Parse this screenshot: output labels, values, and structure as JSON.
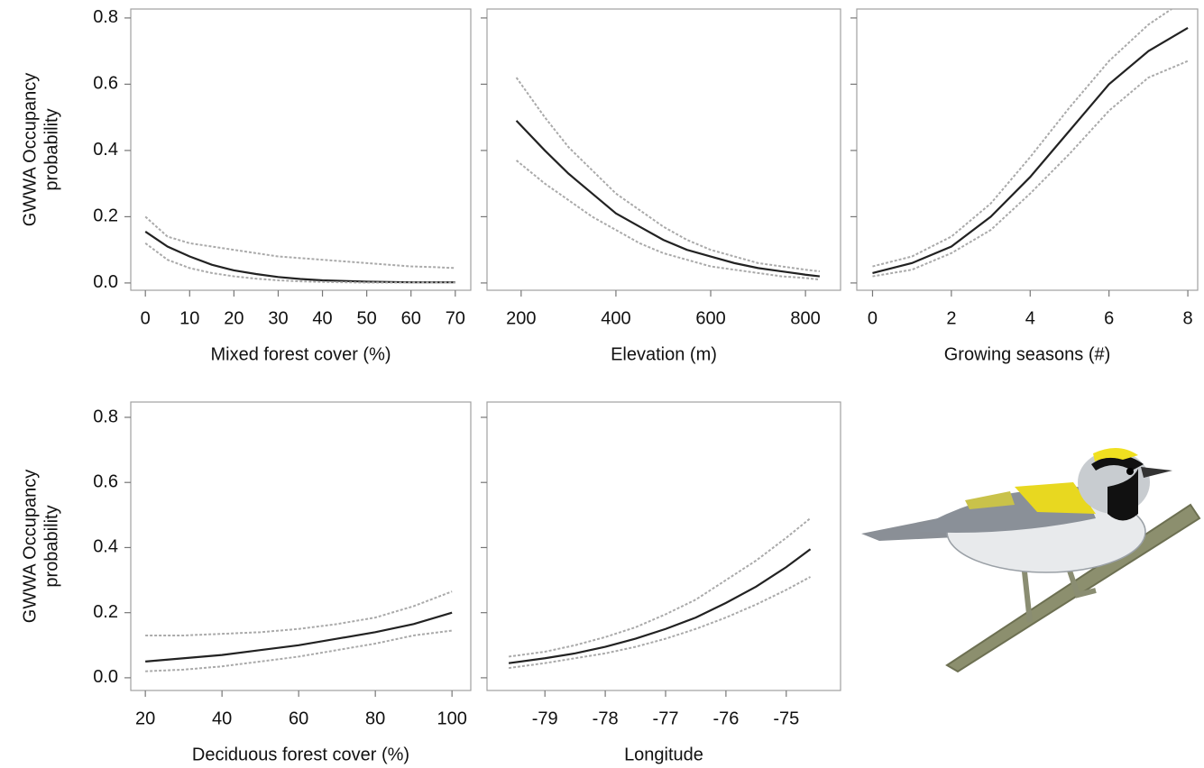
{
  "chart_data": [
    {
      "type": "line",
      "xlabel": "Mixed forest cover (%)",
      "ylabel": [
        "GWWA Occupancy",
        "probability"
      ],
      "show_ytick_labels": true,
      "x": [
        0,
        5,
        10,
        15,
        20,
        25,
        30,
        35,
        40,
        45,
        50,
        55,
        60,
        65,
        70
      ],
      "series": [
        {
          "color": "#aaaaaa",
          "style": "dashed",
          "values": [
            0.2,
            0.14,
            0.12,
            0.11,
            0.1,
            0.09,
            0.08,
            0.075,
            0.07,
            0.065,
            0.06,
            0.055,
            0.05,
            0.048,
            0.045
          ]
        },
        {
          "color": "#222222",
          "style": "solid",
          "values": [
            0.155,
            0.11,
            0.08,
            0.055,
            0.038,
            0.027,
            0.018,
            0.012,
            0.008,
            0.006,
            0.004,
            0.003,
            0.002,
            0.002,
            0.002
          ]
        },
        {
          "color": "#aaaaaa",
          "style": "dashed",
          "values": [
            0.12,
            0.07,
            0.045,
            0.03,
            0.02,
            0.013,
            0.008,
            0.005,
            0.003,
            0.002,
            0.001,
            0.001,
            0.001,
            0.001,
            0.001
          ]
        }
      ],
      "xlim": [
        -3.3,
        73.5
      ],
      "ylim": [
        -0.022,
        0.827
      ],
      "xticks": [
        0,
        10,
        20,
        30,
        40,
        50,
        60,
        70
      ],
      "yticks": [
        {
          "value": 0,
          "label": "0.0"
        },
        0.2,
        0.4,
        0.6,
        0.8
      ]
    },
    {
      "type": "line",
      "xlabel": "Elevation  (m)",
      "show_ytick_labels": false,
      "x": [
        190,
        250,
        300,
        350,
        400,
        450,
        500,
        550,
        600,
        650,
        700,
        750,
        800,
        830
      ],
      "series": [
        {
          "color": "#aaaaaa",
          "style": "dashed",
          "values": [
            0.62,
            0.5,
            0.41,
            0.34,
            0.27,
            0.22,
            0.17,
            0.13,
            0.1,
            0.08,
            0.06,
            0.05,
            0.04,
            0.035
          ]
        },
        {
          "color": "#222222",
          "style": "solid",
          "values": [
            0.49,
            0.4,
            0.33,
            0.27,
            0.21,
            0.17,
            0.13,
            0.1,
            0.08,
            0.06,
            0.045,
            0.035,
            0.025,
            0.02
          ]
        },
        {
          "color": "#aaaaaa",
          "style": "dashed",
          "values": [
            0.37,
            0.3,
            0.25,
            0.2,
            0.16,
            0.12,
            0.09,
            0.07,
            0.05,
            0.04,
            0.03,
            0.02,
            0.015,
            0.01
          ]
        }
      ],
      "xlim": [
        128,
        874
      ],
      "ylim": [
        -0.022,
        0.827
      ],
      "xticks": [
        200,
        400,
        600,
        800
      ],
      "yticks": [
        0,
        0.2,
        0.4,
        0.6,
        0.8
      ]
    },
    {
      "type": "line",
      "xlabel": "Growing  seasons (#)",
      "show_ytick_labels": false,
      "x": [
        0,
        1,
        2,
        3,
        4,
        5,
        6,
        7,
        8
      ],
      "series": [
        {
          "color": "#aaaaaa",
          "style": "dashed",
          "values": [
            0.05,
            0.08,
            0.14,
            0.24,
            0.38,
            0.53,
            0.67,
            0.78,
            0.86
          ]
        },
        {
          "color": "#222222",
          "style": "solid",
          "values": [
            0.03,
            0.06,
            0.11,
            0.2,
            0.32,
            0.46,
            0.6,
            0.7,
            0.77
          ]
        },
        {
          "color": "#aaaaaa",
          "style": "dashed",
          "values": [
            0.02,
            0.04,
            0.09,
            0.16,
            0.27,
            0.39,
            0.52,
            0.62,
            0.67
          ]
        }
      ],
      "xlim": [
        -0.4,
        8.25
      ],
      "ylim": [
        -0.022,
        0.827
      ],
      "xticks": [
        0,
        2,
        4,
        6,
        8
      ],
      "yticks": [
        0,
        0.2,
        0.4,
        0.6,
        0.8
      ]
    },
    {
      "type": "line",
      "xlabel": "Deciduous forest cover (%)",
      "ylabel": [
        "GWWA Occupancy",
        "probability"
      ],
      "show_ytick_labels": true,
      "x": [
        20,
        30,
        40,
        50,
        60,
        70,
        80,
        90,
        100
      ],
      "series": [
        {
          "color": "#aaaaaa",
          "style": "dashed",
          "values": [
            0.13,
            0.13,
            0.135,
            0.14,
            0.15,
            0.165,
            0.185,
            0.22,
            0.265
          ]
        },
        {
          "color": "#222222",
          "style": "solid",
          "values": [
            0.05,
            0.06,
            0.07,
            0.085,
            0.1,
            0.12,
            0.14,
            0.165,
            0.2
          ]
        },
        {
          "color": "#aaaaaa",
          "style": "dashed",
          "values": [
            0.02,
            0.025,
            0.035,
            0.05,
            0.065,
            0.085,
            0.105,
            0.13,
            0.145
          ]
        }
      ],
      "xlim": [
        16.2,
        104.9
      ],
      "ylim": [
        -0.039,
        0.847
      ],
      "xticks": [
        20,
        40,
        60,
        80,
        100
      ],
      "yticks": [
        {
          "value": 0,
          "label": "0.0"
        },
        0.2,
        0.4,
        0.6,
        0.8
      ]
    },
    {
      "type": "line",
      "xlabel": "Longitude",
      "show_ytick_labels": false,
      "x": [
        -79.6,
        -79,
        -78.5,
        -78,
        -77.5,
        -77,
        -76.5,
        -76,
        -75.5,
        -75,
        -74.6
      ],
      "series": [
        {
          "color": "#aaaaaa",
          "style": "dashed",
          "values": [
            0.065,
            0.08,
            0.1,
            0.125,
            0.155,
            0.195,
            0.24,
            0.3,
            0.36,
            0.43,
            0.49
          ]
        },
        {
          "color": "#222222",
          "style": "solid",
          "values": [
            0.045,
            0.06,
            0.075,
            0.095,
            0.12,
            0.15,
            0.185,
            0.23,
            0.28,
            0.34,
            0.395
          ]
        },
        {
          "color": "#aaaaaa",
          "style": "dashed",
          "values": [
            0.03,
            0.045,
            0.06,
            0.075,
            0.095,
            0.12,
            0.15,
            0.185,
            0.225,
            0.27,
            0.31
          ]
        }
      ],
      "xlim": [
        -79.96,
        -74.1
      ],
      "ylim": [
        -0.039,
        0.847
      ],
      "xticks": [
        -79,
        -78,
        -77,
        -76,
        -75
      ],
      "yticks": [
        0,
        0.2,
        0.4,
        0.6,
        0.8
      ]
    }
  ]
}
